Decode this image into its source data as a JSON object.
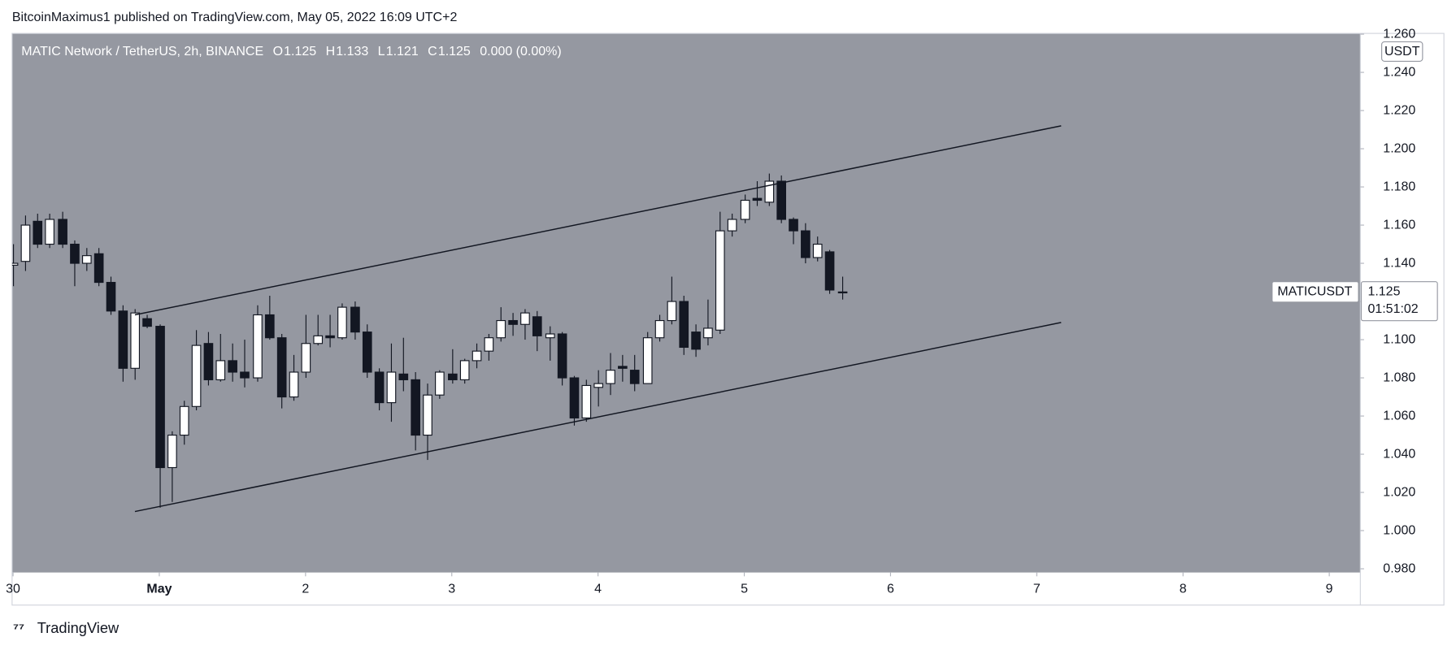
{
  "header": {
    "publisher": "BitcoinMaximus1 published on TradingView.com, May 05, 2022 16:09 UTC+2",
    "footer": "TradingView"
  },
  "chart_data": {
    "type": "candlestick",
    "symbol": "MATIC Network / TetherUS, 2h, BINANCE",
    "ohlc": [
      {
        "key": "O",
        "value": 1.125
      },
      {
        "key": "H",
        "value": 1.133
      },
      {
        "key": "L",
        "value": 1.121
      },
      {
        "key": "C",
        "value": 1.125
      }
    ],
    "change": "0.000 (0.00%)",
    "currency": "USDT",
    "last_price": {
      "name": "MATICUSDT",
      "value": 1.125,
      "countdown": "01:51:02"
    },
    "background": "#9598a1",
    "up_color": "#ffffff",
    "down_color": "#131722",
    "x": [
      0,
      1,
      2,
      3,
      4,
      5,
      6,
      7,
      8,
      9,
      10,
      11,
      12,
      13,
      14,
      15,
      16,
      17,
      18,
      19,
      20,
      21,
      22,
      23,
      24,
      25,
      26,
      27,
      28,
      29,
      30,
      31,
      32,
      33,
      34,
      35,
      36,
      37,
      38,
      39,
      40,
      41,
      42,
      43,
      44,
      45,
      46,
      47,
      48,
      49,
      50,
      51,
      52,
      53,
      54,
      55,
      56,
      57,
      58,
      59,
      60,
      61,
      62,
      63,
      64,
      65,
      66,
      67,
      68
    ],
    "open": [
      1.139,
      1.141,
      1.162,
      1.15,
      1.163,
      1.15,
      1.14,
      1.145,
      1.13,
      1.115,
      1.085,
      1.111,
      1.107,
      1.033,
      1.05,
      1.065,
      1.098,
      1.079,
      1.089,
      1.083,
      1.08,
      1.113,
      1.101,
      1.07,
      1.083,
      1.098,
      1.102,
      1.101,
      1.117,
      1.104,
      1.083,
      1.067,
      1.082,
      1.079,
      1.05,
      1.071,
      1.082,
      1.079,
      1.089,
      1.094,
      1.101,
      1.11,
      1.108,
      1.112,
      1.101,
      1.103,
      1.08,
      1.059,
      1.075,
      1.077,
      1.086,
      1.084,
      1.077,
      1.101,
      1.11,
      1.12,
      1.104,
      1.101,
      1.105,
      1.157,
      1.163,
      1.174,
      1.172,
      1.183,
      1.163,
      1.157,
      1.143,
      1.146,
      1.125
    ],
    "high": [
      1.15,
      1.165,
      1.166,
      1.166,
      1.167,
      1.152,
      1.148,
      1.148,
      1.133,
      1.118,
      1.116,
      1.113,
      1.108,
      1.052,
      1.068,
      1.105,
      1.104,
      1.103,
      1.098,
      1.1,
      1.118,
      1.123,
      1.103,
      1.092,
      1.113,
      1.113,
      1.113,
      1.119,
      1.12,
      1.108,
      1.085,
      1.098,
      1.101,
      1.083,
      1.077,
      1.084,
      1.095,
      1.09,
      1.098,
      1.103,
      1.117,
      1.114,
      1.116,
      1.115,
      1.107,
      1.104,
      1.081,
      1.079,
      1.084,
      1.093,
      1.092,
      1.092,
      1.104,
      1.113,
      1.133,
      1.123,
      1.108,
      1.121,
      1.167,
      1.166,
      1.176,
      1.183,
      1.187,
      1.186,
      1.164,
      1.161,
      1.154,
      1.147,
      1.133
    ],
    "low": [
      1.128,
      1.136,
      1.148,
      1.148,
      1.148,
      1.128,
      1.136,
      1.128,
      1.113,
      1.078,
      1.079,
      1.106,
      1.012,
      1.015,
      1.045,
      1.063,
      1.076,
      1.078,
      1.078,
      1.075,
      1.078,
      1.1,
      1.064,
      1.068,
      1.08,
      1.097,
      1.096,
      1.1,
      1.1,
      1.08,
      1.063,
      1.057,
      1.073,
      1.042,
      1.037,
      1.069,
      1.077,
      1.077,
      1.085,
      1.089,
      1.099,
      1.102,
      1.1,
      1.094,
      1.089,
      1.076,
      1.055,
      1.057,
      1.065,
      1.071,
      1.078,
      1.073,
      1.077,
      1.099,
      1.108,
      1.092,
      1.091,
      1.097,
      1.103,
      1.154,
      1.161,
      1.17,
      1.17,
      1.161,
      1.15,
      1.14,
      1.141,
      1.124,
      1.121
    ],
    "close": [
      1.14,
      1.16,
      1.15,
      1.163,
      1.15,
      1.14,
      1.144,
      1.13,
      1.115,
      1.085,
      1.114,
      1.107,
      1.033,
      1.05,
      1.065,
      1.097,
      1.079,
      1.089,
      1.083,
      1.08,
      1.113,
      1.101,
      1.07,
      1.083,
      1.098,
      1.102,
      1.101,
      1.117,
      1.104,
      1.083,
      1.067,
      1.083,
      1.079,
      1.05,
      1.071,
      1.083,
      1.079,
      1.089,
      1.094,
      1.101,
      1.11,
      1.108,
      1.114,
      1.102,
      1.103,
      1.08,
      1.059,
      1.076,
      1.077,
      1.084,
      1.085,
      1.077,
      1.101,
      1.11,
      1.12,
      1.096,
      1.095,
      1.106,
      1.157,
      1.163,
      1.173,
      1.173,
      1.183,
      1.163,
      1.157,
      1.143,
      1.15,
      1.126,
      1.125
    ],
    "lines": [
      {
        "x": [
          10,
          86
        ],
        "y": [
          1.113,
          1.212
        ]
      },
      {
        "x": [
          10,
          86
        ],
        "y": [
          1.01,
          1.109
        ]
      }
    ],
    "xlim": [
      -0.08,
      110.55
    ],
    "ylim": [
      0.978,
      1.2604
    ],
    "xticks": [
      {
        "value": 0,
        "label": "30"
      },
      {
        "value": 12,
        "label": "May"
      },
      {
        "value": 24,
        "label": "2"
      },
      {
        "value": 36,
        "label": "3"
      },
      {
        "value": 48,
        "label": "4"
      },
      {
        "value": 60,
        "label": "5"
      },
      {
        "value": 72,
        "label": "6"
      },
      {
        "value": 84,
        "label": "7"
      },
      {
        "value": 96,
        "label": "8"
      },
      {
        "value": 108,
        "label": "9"
      }
    ],
    "yticks": [
      {
        "value": 0.98,
        "label": "0.980"
      },
      {
        "value": 1.0,
        "label": "1.000"
      },
      {
        "value": 1.02,
        "label": "1.020"
      },
      {
        "value": 1.04,
        "label": "1.040"
      },
      {
        "value": 1.06,
        "label": "1.060"
      },
      {
        "value": 1.08,
        "label": "1.080"
      },
      {
        "value": 1.1,
        "label": "1.100"
      },
      {
        "value": 1.12,
        "label": "1.120"
      },
      {
        "value": 1.14,
        "label": "1.140"
      },
      {
        "value": 1.16,
        "label": "1.160"
      },
      {
        "value": 1.18,
        "label": "1.180"
      },
      {
        "value": 1.2,
        "label": "1.200"
      },
      {
        "value": 1.22,
        "label": "1.220"
      },
      {
        "value": 1.24,
        "label": "1.240"
      },
      {
        "value": 1.26,
        "label": "1.260"
      }
    ]
  }
}
